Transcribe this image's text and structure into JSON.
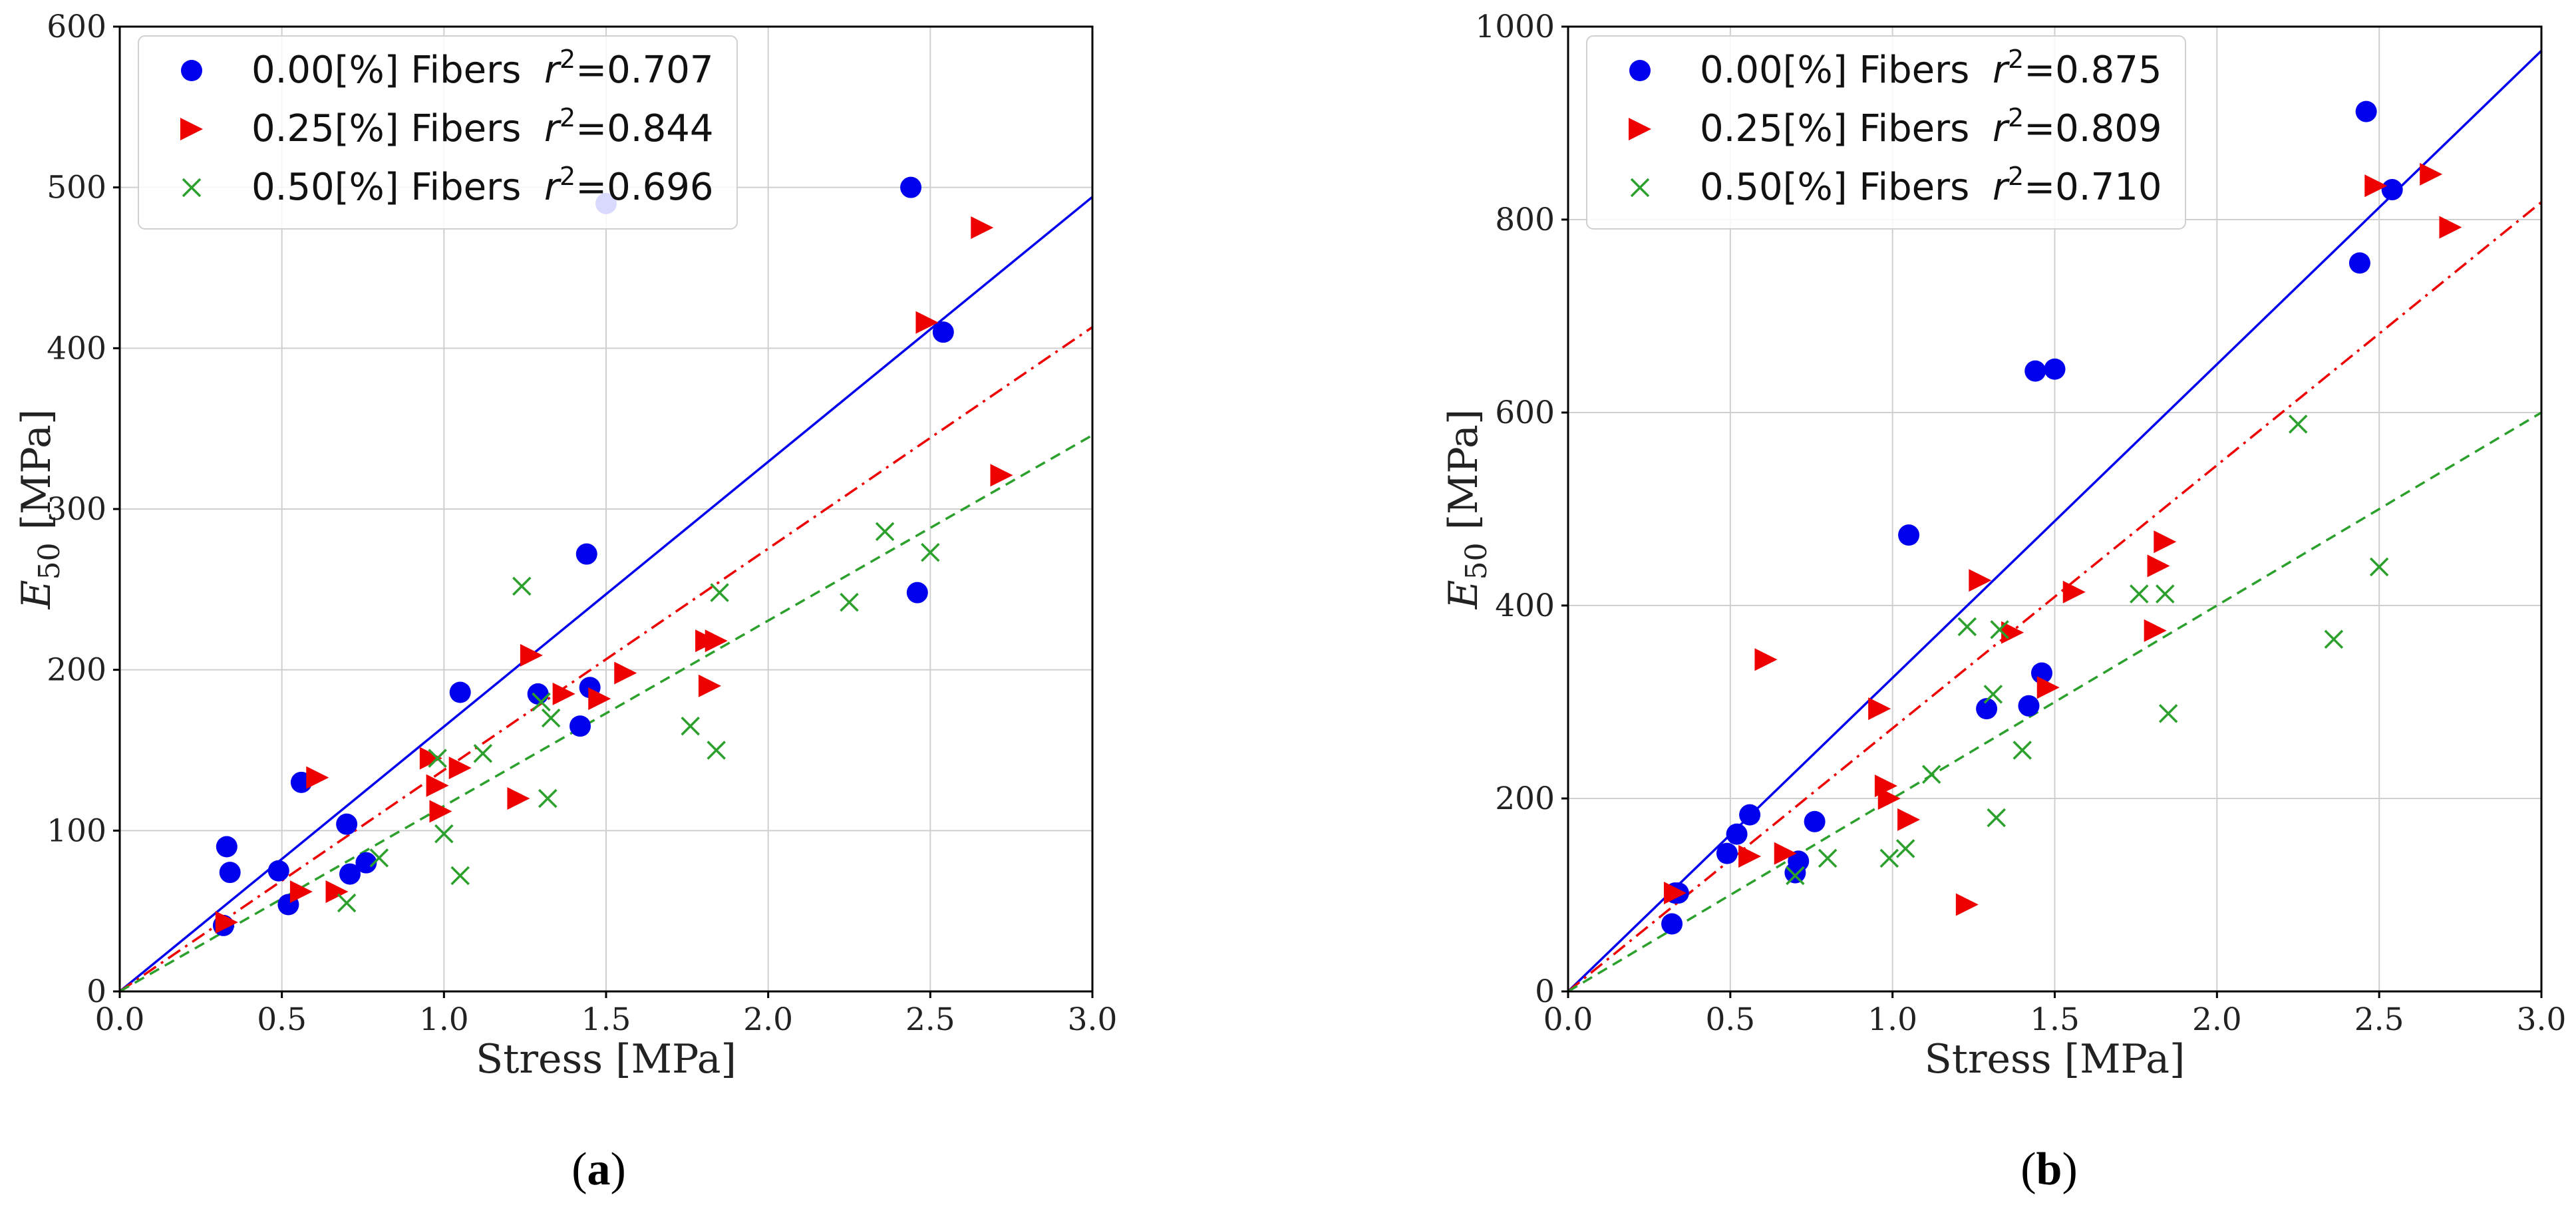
{
  "chart_data": [
    {
      "type": "scatter",
      "panel_label": "a",
      "xlabel": "Stress [MPa]",
      "ylabel": "E50 [MPa]",
      "ylabel_main": "E",
      "ylabel_sub": "50",
      "ylabel_unit": " [MPa]",
      "xlim": [
        0,
        3.0
      ],
      "ylim": [
        0,
        600
      ],
      "xticks": [
        0,
        0.5,
        1.0,
        1.5,
        2.0,
        2.5,
        3.0
      ],
      "xtick_labels": [
        "0.0",
        "0.5",
        "1.0",
        "1.5",
        "2.0",
        "2.5",
        "3.0"
      ],
      "yticks": [
        0,
        100,
        200,
        300,
        400,
        500,
        600
      ],
      "ytick_labels": [
        "0",
        "100",
        "200",
        "300",
        "400",
        "500",
        "600"
      ],
      "grid": true,
      "legend_position": "top-left",
      "series": [
        {
          "name": "0.00[%] Fibers",
          "r2_label": "r",
          "r2_exp": "2",
          "r2_value": "=0.707",
          "marker": "circle",
          "color": "#0000ee",
          "line_style": "solid",
          "fit_slope": 164.7,
          "x": [
            0.32,
            0.33,
            0.34,
            0.49,
            0.52,
            0.56,
            0.7,
            0.71,
            0.76,
            1.05,
            1.29,
            1.42,
            1.44,
            1.45,
            1.5,
            2.44,
            2.46,
            2.54
          ],
          "y": [
            41,
            90,
            74,
            75,
            54,
            130,
            104,
            73,
            80,
            186,
            185,
            165,
            272,
            189,
            490,
            500,
            248,
            410
          ]
        },
        {
          "name": "0.25[%] Fibers",
          "r2_label": "r",
          "r2_exp": "2",
          "r2_value": "=0.844",
          "marker": "triangle-right",
          "color": "#ee0000",
          "line_style": "dashdot",
          "fit_slope": 137.7,
          "x": [
            0.33,
            0.56,
            0.61,
            0.67,
            0.96,
            0.98,
            0.99,
            1.05,
            1.23,
            1.27,
            1.37,
            1.48,
            1.56,
            1.81,
            1.82,
            1.84,
            2.49,
            2.66,
            2.72
          ],
          "y": [
            43,
            62,
            133,
            62,
            145,
            128,
            112,
            139,
            120,
            209,
            185,
            182,
            198,
            218,
            190,
            218,
            416,
            475,
            321
          ]
        },
        {
          "name": "0.50[%] Fibers",
          "r2_label": "r",
          "r2_exp": "2",
          "r2_value": "=0.696",
          "marker": "x",
          "color": "#2ca02c",
          "line_style": "dashed",
          "fit_slope": 115.3,
          "x": [
            0.7,
            0.8,
            0.98,
            1.0,
            1.05,
            1.12,
            1.24,
            1.3,
            1.32,
            1.33,
            1.76,
            1.84,
            1.85,
            2.25,
            2.36,
            2.5
          ],
          "y": [
            55,
            83,
            145,
            98,
            72,
            148,
            252,
            180,
            120,
            170,
            165,
            150,
            248,
            242,
            286,
            273
          ]
        }
      ]
    },
    {
      "type": "scatter",
      "panel_label": "b",
      "xlabel": "Stress [MPa]",
      "ylabel": "E50 [MPa]",
      "ylabel_main": "E",
      "ylabel_sub": "50",
      "ylabel_unit": " [MPa]",
      "xlim": [
        0,
        3.0
      ],
      "ylim": [
        0,
        1000
      ],
      "xticks": [
        0,
        0.5,
        1.0,
        1.5,
        2.0,
        2.5,
        3.0
      ],
      "xtick_labels": [
        "0.0",
        "0.5",
        "1.0",
        "1.5",
        "2.0",
        "2.5",
        "3.0"
      ],
      "yticks": [
        0,
        200,
        400,
        600,
        800,
        1000
      ],
      "ytick_labels": [
        "0",
        "200",
        "400",
        "600",
        "800",
        "1000"
      ],
      "grid": true,
      "legend_position": "top-left",
      "series": [
        {
          "name": "0.00[%] Fibers",
          "r2_label": "r",
          "r2_exp": "2",
          "r2_value": "=0.875",
          "marker": "circle",
          "color": "#0000ee",
          "line_style": "solid",
          "fit_slope": 325,
          "x": [
            0.32,
            0.33,
            0.34,
            0.49,
            0.52,
            0.56,
            0.7,
            0.71,
            0.76,
            1.05,
            1.29,
            1.42,
            1.44,
            1.46,
            1.5,
            2.44,
            2.46,
            2.54
          ],
          "y": [
            70,
            102,
            102,
            143,
            163,
            183,
            123,
            135,
            176,
            473,
            293,
            296,
            643,
            330,
            645,
            755,
            912,
            831
          ]
        },
        {
          "name": "0.25[%] Fibers",
          "r2_label": "r",
          "r2_exp": "2",
          "r2_value": "=0.809",
          "marker": "triangle-right",
          "color": "#ee0000",
          "line_style": "dashdot",
          "fit_slope": 272.7,
          "x": [
            0.33,
            0.56,
            0.61,
            0.67,
            0.96,
            0.98,
            0.99,
            1.05,
            1.23,
            1.27,
            1.37,
            1.48,
            1.56,
            1.81,
            1.82,
            1.84,
            2.49,
            2.66,
            2.72
          ],
          "y": [
            102,
            140,
            344,
            143,
            293,
            213,
            200,
            178,
            90,
            426,
            372,
            315,
            414,
            374,
            441,
            466,
            835,
            847,
            792
          ]
        },
        {
          "name": "0.50[%] Fibers",
          "r2_label": "r",
          "r2_exp": "2",
          "r2_value": "=0.710",
          "marker": "x",
          "color": "#2ca02c",
          "line_style": "dashed",
          "fit_slope": 200,
          "x": [
            0.7,
            0.8,
            0.99,
            1.04,
            1.12,
            1.23,
            1.31,
            1.32,
            1.33,
            1.4,
            1.76,
            1.84,
            1.85,
            2.25,
            2.36,
            2.5
          ],
          "y": [
            120,
            138,
            138,
            148,
            225,
            378,
            308,
            180,
            375,
            250,
            412,
            412,
            288,
            588,
            365,
            440
          ]
        }
      ]
    }
  ]
}
